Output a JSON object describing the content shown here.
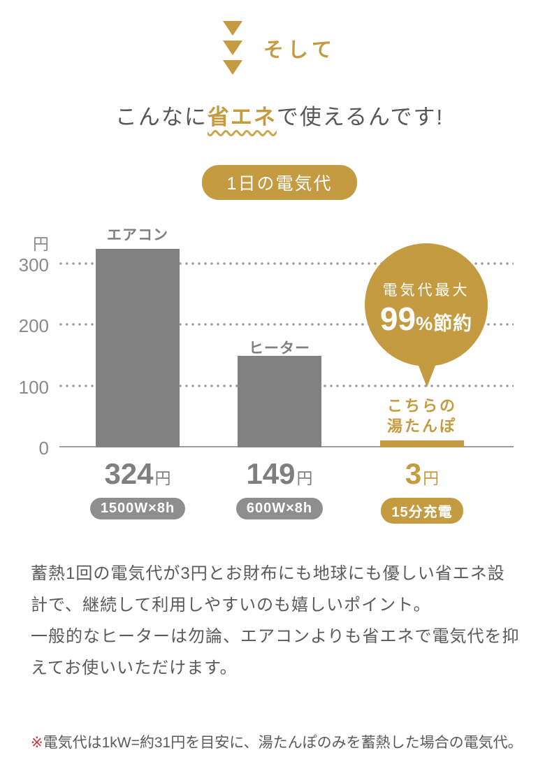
{
  "colors": {
    "gold": "#C49B41",
    "bar_gray": "#818181",
    "badge_gray": "#8E8E8E",
    "text_dark": "#575757",
    "grid_gray": "#9B9B9B",
    "footnote_marker_red": "#C8353A",
    "background": "#FFFFFF"
  },
  "transition": {
    "label": "そして"
  },
  "headline": {
    "prefix": "こんなに",
    "highlight": "省エネ",
    "suffix": "で使えるんです!"
  },
  "title_badge": {
    "label": "1日の電気代"
  },
  "chart_data": {
    "type": "bar",
    "title": "1日の電気代",
    "ylabel": "円",
    "unit_label": "円",
    "yticks": [
      "300",
      "200",
      "100",
      "0"
    ],
    "ylim": [
      0,
      340
    ],
    "grid": "dotted horizontal lines at 100/200/300",
    "legend": "none",
    "categories": [
      "エアコン",
      "ヒーター",
      "湯たんぽ"
    ],
    "values": [
      324,
      149,
      3
    ],
    "display_values": [
      "324",
      "149",
      "3"
    ],
    "value_unit": "円",
    "bar_colors": [
      "#818181",
      "#818181",
      "#C49B41"
    ],
    "condition_badges": [
      "1500W×8h",
      "600W×8h",
      "15分充電"
    ],
    "highlight": {
      "label_line1": "こちらの",
      "label_line2": "湯たんぽ",
      "annotation_line1": "電気代最大",
      "annotation_value": "99",
      "annotation_suffix": "%節約"
    }
  },
  "body": {
    "lines": [
      "蓄熱1回の電気代が3円とお財布にも地球にも優しい省エネ設",
      "計で、継続して利用しやすいのも嬉しいポイント。",
      "一般的なヒーターは勿論、エアコンよりも省エネで電気代を抑",
      "えてお使いいただけます。"
    ]
  },
  "footnote": {
    "marker": "※",
    "text": "電気代は1kW=約31円を目安に、湯たんぽのみを蓄熱した場合の電気代。"
  }
}
